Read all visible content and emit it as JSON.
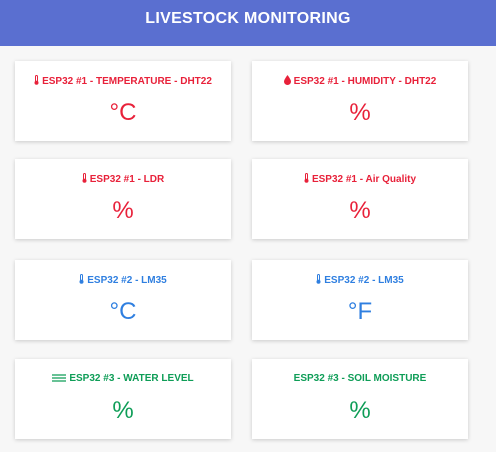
{
  "header": {
    "title": "LIVESTOCK MONITORING"
  },
  "colors": {
    "header_bg": "#5a6fd0",
    "red": "#e8213a",
    "blue": "#2f7fe0",
    "green": "#0e9d57"
  },
  "cards": [
    {
      "label": "ESP32 #1 - TEMPERATURE - DHT22",
      "unit": "°C",
      "icon": "thermometer-icon",
      "color": "#e8213a"
    },
    {
      "label": "ESP32 #1 - HUMIDITY - DHT22",
      "unit": "%",
      "icon": "droplet-icon",
      "color": "#e8213a"
    },
    {
      "label": "ESP32 #1 - LDR",
      "unit": "%",
      "icon": "thermometer-icon",
      "color": "#e8213a"
    },
    {
      "label": "ESP32 #1 - Air Quality",
      "unit": "%",
      "icon": "thermometer-icon",
      "color": "#e8213a"
    },
    {
      "label": "ESP32 #2 - LM35",
      "unit": "°C",
      "icon": "thermometer-icon",
      "color": "#2f7fe0"
    },
    {
      "label": "ESP32 #2 - LM35",
      "unit": "°F",
      "icon": "thermometer-icon",
      "color": "#2f7fe0"
    },
    {
      "label": "ESP32 #3 - WATER LEVEL",
      "unit": "%",
      "icon": "water-level-icon",
      "color": "#0e9d57"
    },
    {
      "label": "ESP32 #3 - SOIL MOISTURE",
      "unit": "%",
      "icon": "",
      "color": "#0e9d57"
    }
  ]
}
